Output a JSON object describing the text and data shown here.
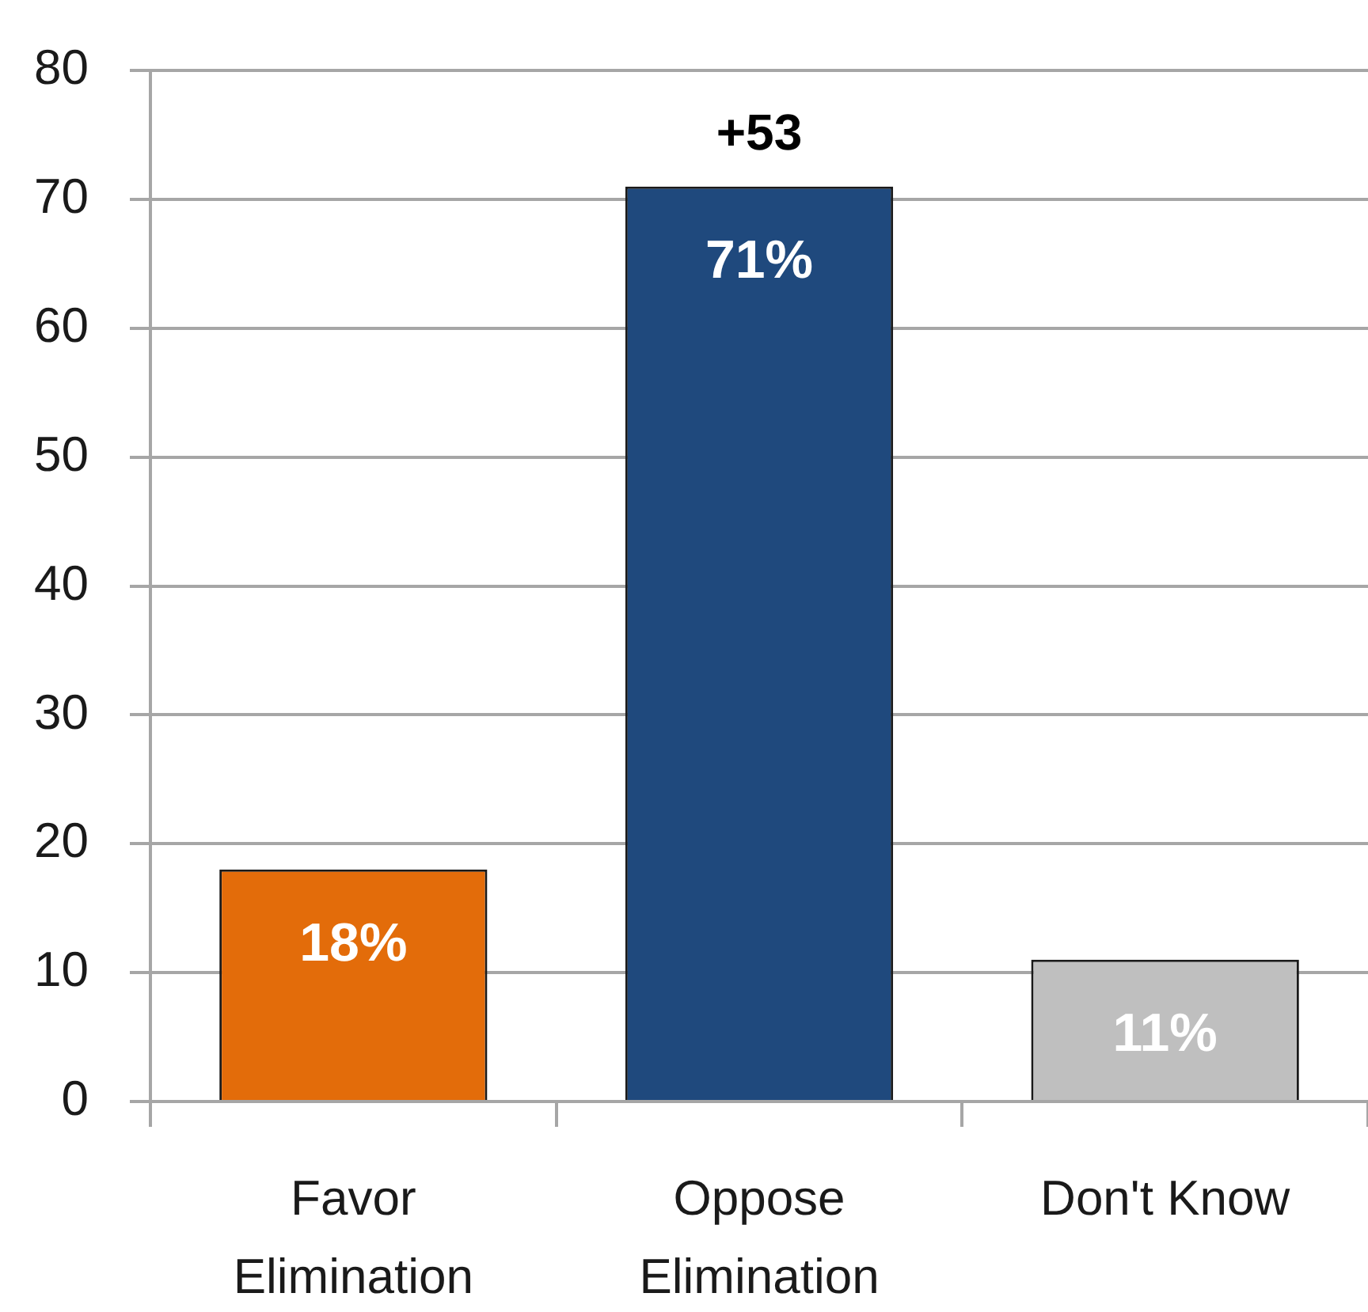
{
  "chart_data": {
    "type": "bar",
    "categories": [
      "Favor\nElimination",
      "Oppose\nElimination",
      "Don't Know"
    ],
    "values": [
      18,
      71,
      11
    ],
    "colors": [
      "#e36c0a",
      "#1f497d",
      "#bfbfbf"
    ],
    "value_labels": [
      "18%",
      "71%",
      "11%"
    ],
    "annotations": [
      {
        "text": "+53",
        "x": "Oppose\nElimination",
        "y": 71
      }
    ],
    "ylim": [
      0,
      80
    ],
    "yticks": [
      0,
      10,
      20,
      30,
      40,
      50,
      60,
      70,
      80
    ],
    "grid": "y"
  }
}
